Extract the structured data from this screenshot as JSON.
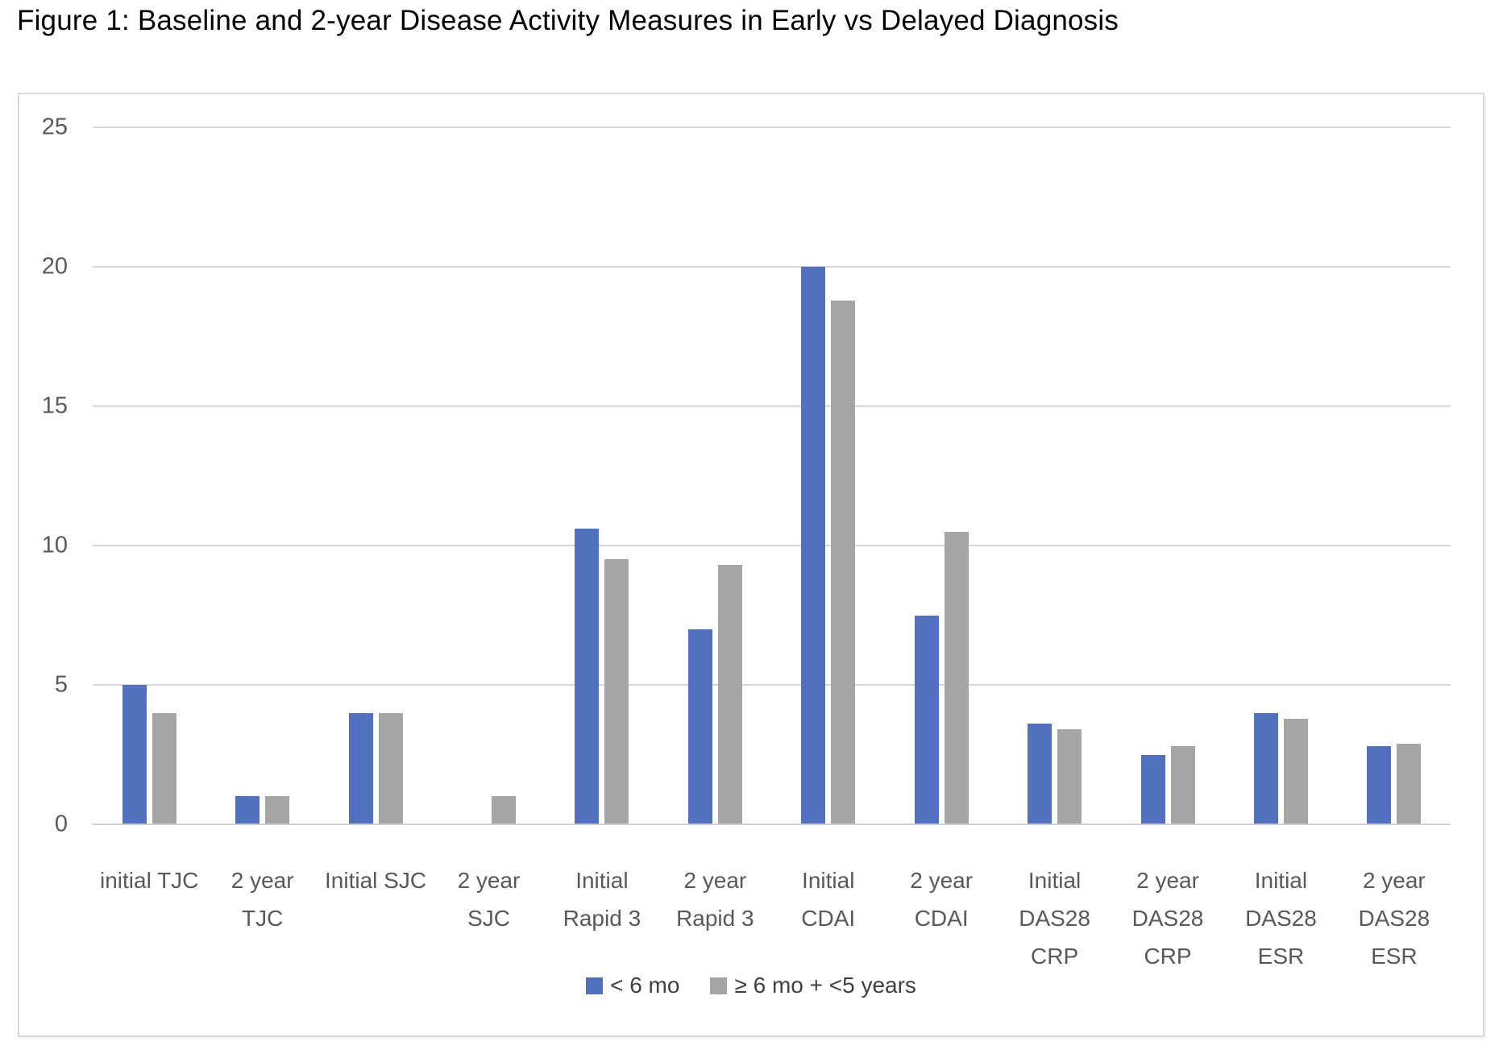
{
  "figure": {
    "title": "Figure 1: Baseline and 2-year Disease Activity Measures in Early vs Delayed Diagnosis"
  },
  "chart_data": {
    "type": "bar",
    "title": "Figure 1: Baseline and 2-year Disease Activity Measures in Early vs Delayed Diagnosis",
    "categories": [
      "initial TJC",
      "2 year TJC",
      "Initial SJC",
      "2 year SJC",
      "Initial Rapid 3",
      "2 year Rapid 3",
      "Initial CDAI",
      "2 year CDAI",
      "Initial DAS28 CRP",
      "2 year DAS28 CRP",
      "Initial DAS28 ESR",
      "2 year DAS28 ESR"
    ],
    "category_label_lines": [
      [
        "initial TJC"
      ],
      [
        "2 year",
        "TJC"
      ],
      [
        "Initial SJC"
      ],
      [
        "2 year",
        "SJC"
      ],
      [
        "Initial",
        "Rapid 3"
      ],
      [
        "2 year",
        "Rapid 3"
      ],
      [
        "Initial",
        "CDAI"
      ],
      [
        "2 year",
        "CDAI"
      ],
      [
        "Initial",
        "DAS28",
        "CRP"
      ],
      [
        "2 year",
        "DAS28",
        "CRP"
      ],
      [
        "Initial",
        "DAS28",
        "ESR"
      ],
      [
        "2 year",
        "DAS28",
        "ESR"
      ]
    ],
    "series": [
      {
        "name": "< 6 mo",
        "color": "#5171BF",
        "values": [
          5,
          1,
          4,
          0,
          10.6,
          7,
          20,
          7.5,
          3.6,
          2.5,
          4,
          2.8
        ]
      },
      {
        "name": "≥ 6 mo + <5 years",
        "color": "#A5A5A5",
        "values": [
          4,
          1,
          4,
          1,
          9.5,
          9.3,
          18.8,
          10.5,
          3.4,
          2.8,
          3.8,
          2.9
        ]
      }
    ],
    "xlabel": "",
    "ylabel": "",
    "ylim": [
      0,
      25
    ],
    "yticks": [
      0,
      5,
      10,
      15,
      20,
      25
    ],
    "grid": true,
    "legend_position": "bottom",
    "colors": {
      "gridline": "#D9D9D9",
      "axis_line": "#D0D0D0",
      "tick_text": "#595959",
      "legend_text": "#404040",
      "frame_border": "#D9D9D9",
      "title_text": "#000000",
      "background": "#FFFFFF"
    }
  }
}
